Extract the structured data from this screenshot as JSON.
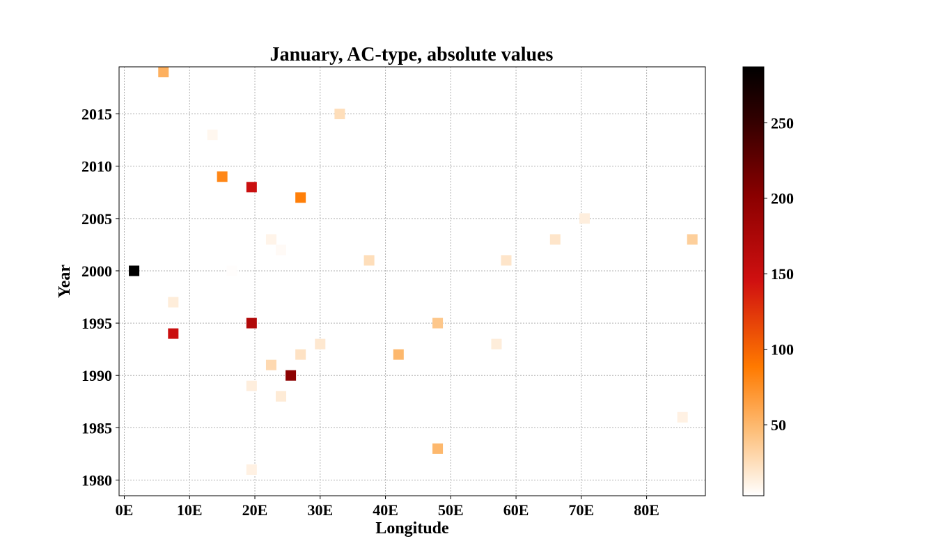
{
  "chart_data": {
    "type": "heatmap",
    "title": "January, AC-type, absolute values",
    "xlabel": "Longitude",
    "ylabel": "Year",
    "xlim": [
      -0.8,
      89
    ],
    "ylim": [
      1978.5,
      2019.5
    ],
    "x_ticks": [
      0,
      10,
      20,
      30,
      40,
      50,
      60,
      70,
      80
    ],
    "x_tick_labels": [
      "0E",
      "10E",
      "20E",
      "30E",
      "40E",
      "50E",
      "60E",
      "70E",
      "80E"
    ],
    "y_ticks": [
      1980,
      1985,
      1990,
      1995,
      2000,
      2005,
      2010,
      2015
    ],
    "y_tick_labels": [
      "1980",
      "1985",
      "1990",
      "1995",
      "2000",
      "2005",
      "2010",
      "2015"
    ],
    "grid": true,
    "colormap": "gist_heat_r",
    "colorbar": {
      "min": 3,
      "max": 287,
      "ticks": [
        50,
        100,
        150,
        200,
        250
      ],
      "tick_labels": [
        "50",
        "100",
        "150",
        "200",
        "250"
      ]
    },
    "points": [
      {
        "x": 6,
        "y": 2019,
        "value": 55
      },
      {
        "x": 33,
        "y": 2015,
        "value": 25
      },
      {
        "x": 13.5,
        "y": 2013,
        "value": 8
      },
      {
        "x": 15,
        "y": 2009,
        "value": 80
      },
      {
        "x": 19.5,
        "y": 2008,
        "value": 150
      },
      {
        "x": 27,
        "y": 2007,
        "value": 85
      },
      {
        "x": 70.5,
        "y": 2005,
        "value": 14
      },
      {
        "x": 22.5,
        "y": 2003,
        "value": 10
      },
      {
        "x": 66,
        "y": 2003,
        "value": 20
      },
      {
        "x": 87,
        "y": 2003,
        "value": 35
      },
      {
        "x": 24,
        "y": 2002,
        "value": 6
      },
      {
        "x": 37.5,
        "y": 2001,
        "value": 25
      },
      {
        "x": 58.5,
        "y": 2001,
        "value": 20
      },
      {
        "x": 1.5,
        "y": 2000,
        "value": 287
      },
      {
        "x": 16.5,
        "y": 2000,
        "value": 4
      },
      {
        "x": 7.5,
        "y": 1997,
        "value": 15
      },
      {
        "x": 19.5,
        "y": 1995,
        "value": 170
      },
      {
        "x": 48,
        "y": 1995,
        "value": 40
      },
      {
        "x": 7.5,
        "y": 1994,
        "value": 150
      },
      {
        "x": 30,
        "y": 1993,
        "value": 18
      },
      {
        "x": 57,
        "y": 1993,
        "value": 15
      },
      {
        "x": 27,
        "y": 1992,
        "value": 22
      },
      {
        "x": 42,
        "y": 1992,
        "value": 50
      },
      {
        "x": 22.5,
        "y": 1991,
        "value": 28
      },
      {
        "x": 25.5,
        "y": 1990,
        "value": 200
      },
      {
        "x": 19.5,
        "y": 1989,
        "value": 14
      },
      {
        "x": 24,
        "y": 1988,
        "value": 16
      },
      {
        "x": 85.5,
        "y": 1986,
        "value": 12
      },
      {
        "x": 48,
        "y": 1983,
        "value": 50
      },
      {
        "x": 19.5,
        "y": 1981,
        "value": 12
      }
    ]
  }
}
